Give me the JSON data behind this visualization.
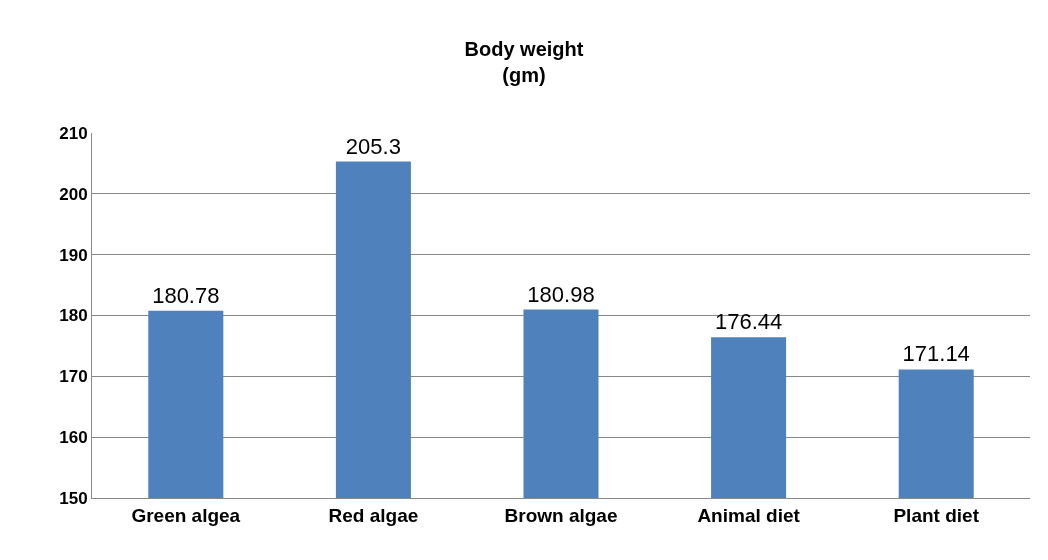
{
  "chart_data": {
    "type": "bar",
    "title": "Body weight\n(gm)",
    "categories": [
      "Green algea",
      "Red algae",
      "Brown algae",
      "Animal diet",
      "Plant diet"
    ],
    "values": [
      180.78,
      205.3,
      180.98,
      176.44,
      171.14
    ],
    "color": "#4f81bd",
    "ylim": [
      150,
      210
    ],
    "yticks": [
      150,
      160,
      170,
      180,
      190,
      200,
      210
    ],
    "grid": "y",
    "data_labels": true
  }
}
